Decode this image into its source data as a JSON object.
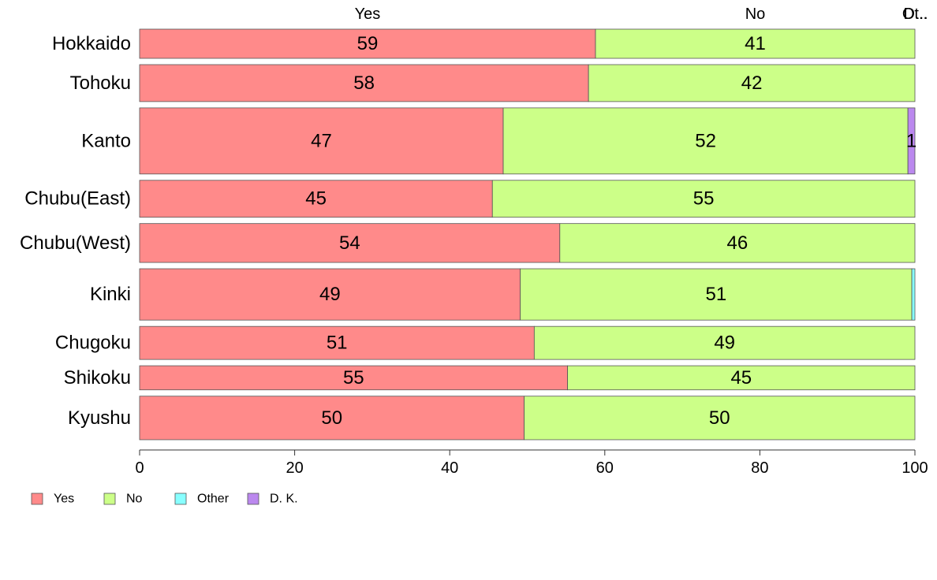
{
  "chart_data": {
    "type": "bar",
    "orientation": "horizontal",
    "stacked": true,
    "categories": [
      "Hokkaido",
      "Tohoku",
      "Kanto",
      "Chubu(East)",
      "Chubu(West)",
      "Kinki",
      "Chugoku",
      "Shikoku",
      "Kyushu"
    ],
    "category_weights": [
      0.75,
      0.95,
      1.7,
      0.95,
      1.0,
      1.32,
      0.85,
      0.62,
      1.12
    ],
    "series": [
      {
        "name": "Yes",
        "color": "#ff8a8a",
        "values": [
          58.8,
          57.9,
          46.9,
          45.5,
          54.2,
          49.1,
          50.9,
          55.2,
          49.6
        ]
      },
      {
        "name": "No",
        "color": "#ccff88",
        "values": [
          41.2,
          42.1,
          52.2,
          54.5,
          45.8,
          50.5,
          49.1,
          44.8,
          50.4
        ]
      },
      {
        "name": "Other",
        "color": "#88ffff",
        "values": [
          0,
          0,
          0,
          0,
          0,
          0.4,
          0,
          0,
          0
        ]
      },
      {
        "name": "D. K.",
        "color": "#bb88ee",
        "values": [
          0,
          0,
          0.9,
          0,
          0,
          0,
          0,
          0,
          0
        ]
      }
    ],
    "segment_labels": [
      [
        "59",
        "41",
        "",
        ""
      ],
      [
        "58",
        "42",
        "",
        ""
      ],
      [
        "47",
        "52",
        "",
        "1"
      ],
      [
        "45",
        "55",
        "",
        ""
      ],
      [
        "54",
        "46",
        "",
        ""
      ],
      [
        "49",
        "51",
        "",
        ""
      ],
      [
        "51",
        "49",
        "",
        ""
      ],
      [
        "55",
        "45",
        "",
        ""
      ],
      [
        "50",
        "50",
        "",
        ""
      ]
    ],
    "top_labels": [
      "Yes",
      "No",
      "Ot..",
      "D..."
    ],
    "xlim": [
      0,
      100
    ],
    "xticks": [
      0,
      20,
      40,
      60,
      80,
      100
    ],
    "xtick_labels": [
      "0",
      "20",
      "40",
      "60",
      "80",
      "100"
    ],
    "title": "",
    "xlabel": "",
    "ylabel": "",
    "grid": false,
    "legend": {
      "placement": "bottom-left",
      "entries": [
        "Yes",
        "No",
        "Other",
        "D. K."
      ]
    }
  }
}
